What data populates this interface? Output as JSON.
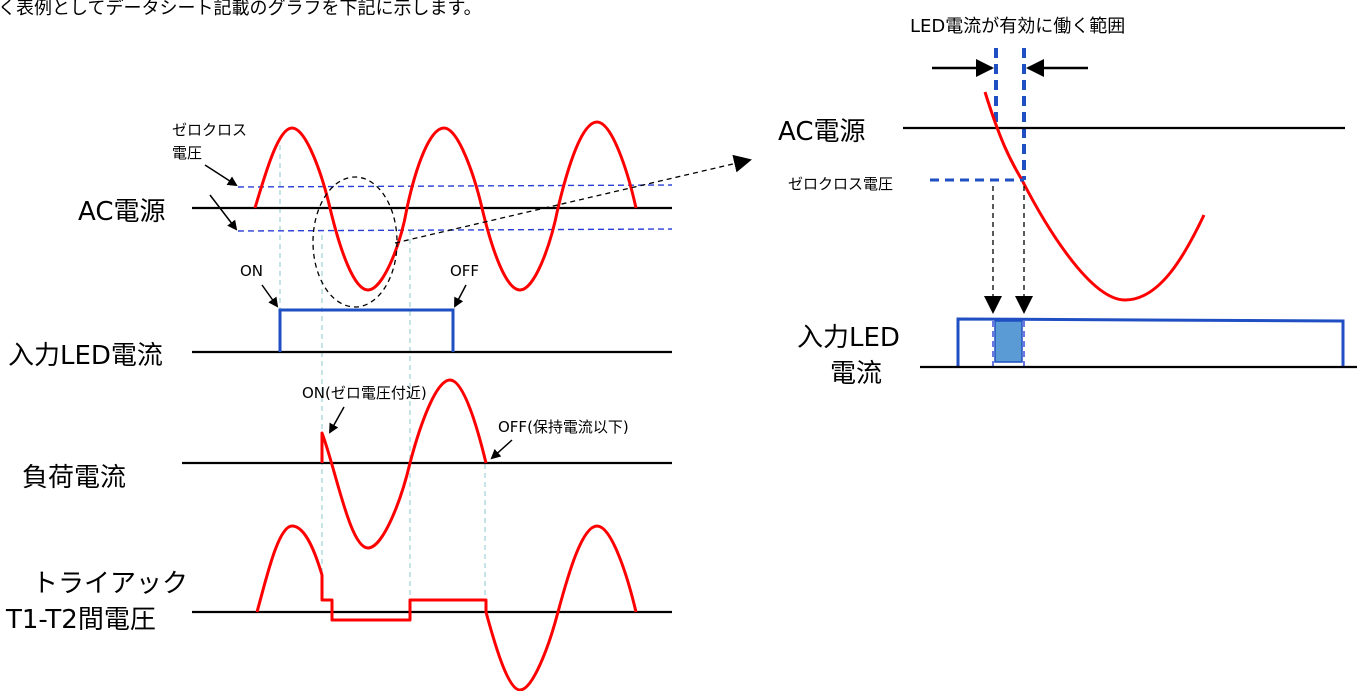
{
  "header_text": "く表例としてデータシート記載のグラフを下記に示します。",
  "left": {
    "ac_label": "AC電源",
    "zero_cross_label": "ゼロクロス",
    "zero_cross_label2": "電圧",
    "on_label": "ON",
    "off_label": "OFF",
    "led_label": "入力LED電流",
    "load_on_label": "ON(ゼロ電圧付近)",
    "load_off_label": "OFF(保持電流以下)",
    "load_label": "負荷電流",
    "triac_label_1": "トライアック",
    "triac_label_2": "T1-T2間電圧"
  },
  "right": {
    "range_label": "LED電流が有効に働く範囲",
    "ac_label": "AC電源",
    "zero_cross_label": "ゼロクロス電圧",
    "led_label_1": "入力LED",
    "led_label_2": "電流"
  },
  "colors": {
    "waveform": "#ff0000",
    "led_pulse": "#1f4fc2",
    "zero_band": "#2a3fd6",
    "guide": "#9fd3d8",
    "window_fill": "#5b9bd5"
  }
}
